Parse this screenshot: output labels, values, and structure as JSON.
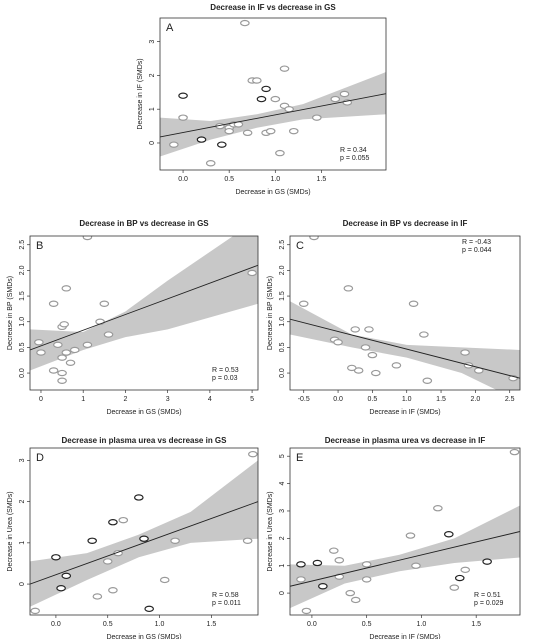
{
  "chart_data": [
    {
      "type": "scatter",
      "title": "Decrease in IF vs decrease in GS",
      "panel": "A",
      "x_label": "Decrease in GS (SMDs)",
      "y_label": "Decrease in IF (SMDs)",
      "xlim": [
        -0.25,
        2.2
      ],
      "ylim": [
        -0.8,
        3.7
      ],
      "xticks": [
        {
          "value": 0,
          "label": "0.0"
        },
        0.5,
        {
          "value": 1,
          "label": "1.0"
        },
        1.5
      ],
      "yticks": [
        0,
        1,
        2,
        3
      ],
      "x": [
        -0.1,
        0.0,
        0.0,
        0.2,
        0.3,
        0.4,
        0.42,
        0.5,
        0.55,
        0.5,
        0.6,
        0.7,
        0.75,
        0.8,
        0.85,
        0.9,
        0.9,
        0.95,
        1.0,
        1.05,
        1.1,
        1.1,
        1.15,
        1.2,
        1.45,
        1.65,
        1.75,
        1.78,
        0.67
      ],
      "y": [
        -0.05,
        1.4,
        0.75,
        0.1,
        -0.6,
        0.5,
        -0.05,
        0.45,
        0.55,
        0.35,
        0.55,
        0.3,
        1.85,
        1.85,
        1.3,
        1.6,
        0.3,
        0.35,
        1.3,
        -0.3,
        2.2,
        1.1,
        1.0,
        0.35,
        0.75,
        1.3,
        1.45,
        1.2,
        3.55
      ],
      "point_colors": [
        "#999",
        "#222",
        "#999",
        "#222",
        "#999",
        "#999",
        "#222",
        "#999",
        "#999",
        "#999",
        "#999",
        "#999",
        "#999",
        "#999",
        "#222",
        "#222",
        "#999",
        "#999",
        "#999",
        "#999",
        "#999",
        "#999",
        "#999",
        "#999",
        "#999",
        "#999",
        "#999",
        "#999",
        "#999"
      ],
      "fit": {
        "x": [
          -0.25,
          2.2
        ],
        "y": [
          0.18,
          1.46
        ]
      },
      "band": {
        "x": [
          -0.25,
          0.3,
          0.8,
          1.3,
          2.2
        ],
        "lower": [
          -0.4,
          0.1,
          0.45,
          0.7,
          0.85
        ],
        "upper": [
          0.75,
          0.65,
          0.85,
          1.15,
          2.1
        ]
      },
      "annotations": [
        "R = 0.34",
        "p =  0.055"
      ]
    },
    {
      "type": "scatter",
      "title": "Decrease in BP vs decrease in GS",
      "panel": "B",
      "x_label": "Decrease in GS (SMDs)",
      "y_label": "Decrease in BP (SMDs)",
      "xlim": [
        -0.26,
        5.14
      ],
      "ylim": [
        -0.33,
        2.67
      ],
      "xticks": [
        0,
        1,
        2,
        3,
        4,
        5
      ],
      "yticks": [
        {
          "value": 0,
          "label": "0.0"
        },
        0.5,
        {
          "value": 1,
          "label": "1.0"
        },
        1.5,
        {
          "value": 2,
          "label": "2.0"
        },
        2.5
      ],
      "x": [
        1.1,
        0.6,
        0.3,
        1.5,
        -0.05,
        0.0,
        0.5,
        0.55,
        0.4,
        0.5,
        0.6,
        0.8,
        0.7,
        0.3,
        0.5,
        0.5,
        1.1,
        1.4,
        1.6,
        5.0
      ],
      "y": [
        2.65,
        1.65,
        1.35,
        1.35,
        0.6,
        0.4,
        0.9,
        0.95,
        0.55,
        0.3,
        0.4,
        0.45,
        0.2,
        0.05,
        0.0,
        -0.15,
        0.55,
        1.0,
        0.75,
        1.95
      ],
      "point_colors": [
        "#999",
        "#999",
        "#999",
        "#999",
        "#999",
        "#999",
        "#999",
        "#999",
        "#999",
        "#999",
        "#999",
        "#999",
        "#999",
        "#999",
        "#999",
        "#999",
        "#999",
        "#999",
        "#999",
        "#999"
      ],
      "fit": {
        "x": [
          -0.26,
          5.14
        ],
        "y": [
          0.45,
          2.1
        ]
      },
      "band": {
        "x": [
          -0.26,
          1,
          2,
          3,
          5.14
        ],
        "lower": [
          0.05,
          0.45,
          0.7,
          0.85,
          1.35
        ],
        "upper": [
          0.85,
          0.8,
          1.2,
          1.8,
          3.0
        ]
      },
      "annotations": [
        "R = 0.53",
        "p = 0.03"
      ]
    },
    {
      "type": "scatter",
      "title": "Decrease in BP vs decrease in IF",
      "panel": "C",
      "x_label": "Decrease in IF (SMDs)",
      "y_label": "Decrease in BP (SMDs)",
      "xlim": [
        -0.7,
        2.65
      ],
      "ylim": [
        -0.33,
        2.67
      ],
      "xticks": [
        -0.5,
        {
          "value": 0,
          "label": "0.0"
        },
        0.5,
        {
          "value": 1,
          "label": "1.0"
        },
        1.5,
        {
          "value": 2,
          "label": "2.0"
        },
        2.5
      ],
      "yticks": [
        {
          "value": 0,
          "label": "0.0"
        },
        0.5,
        {
          "value": 1,
          "label": "1.0"
        },
        1.5,
        {
          "value": 2,
          "label": "2.0"
        },
        2.5
      ],
      "x": [
        -0.35,
        0.15,
        -0.5,
        1.1,
        0.25,
        0.45,
        1.25,
        -0.05,
        0.0,
        0.4,
        0.5,
        0.3,
        0.2,
        0.55,
        0.85,
        1.3,
        1.85,
        1.9,
        2.05,
        2.55
      ],
      "y": [
        2.65,
        1.65,
        1.35,
        1.35,
        0.85,
        0.85,
        0.75,
        0.65,
        0.6,
        0.5,
        0.35,
        0.05,
        0.1,
        0.0,
        0.15,
        -0.15,
        0.4,
        0.15,
        0.05,
        -0.1
      ],
      "point_colors": [
        "#999",
        "#999",
        "#999",
        "#999",
        "#999",
        "#999",
        "#999",
        "#999",
        "#999",
        "#999",
        "#999",
        "#999",
        "#999",
        "#999",
        "#999",
        "#999",
        "#999",
        "#999",
        "#999",
        "#999"
      ],
      "fit": {
        "x": [
          -0.7,
          2.65
        ],
        "y": [
          1.05,
          -0.1
        ]
      },
      "band": {
        "x": [
          -0.7,
          0.2,
          1.0,
          1.8,
          2.65
        ],
        "lower": [
          0.75,
          0.5,
          0.3,
          0.0,
          -0.55
        ],
        "upper": [
          1.4,
          0.75,
          0.55,
          0.5,
          0.45
        ]
      },
      "annotations": [
        "R = -0.43",
        "p = 0.044"
      ]
    },
    {
      "type": "scatter",
      "title": "Decrease in plasma urea vs decrease in GS",
      "panel": "D",
      "x_label": "Decrease in GS (SMDs)",
      "y_label": "Decrease in Urea (SMDs)",
      "xlim": [
        -0.25,
        1.95
      ],
      "ylim": [
        -0.75,
        3.3
      ],
      "xticks": [
        {
          "value": 0,
          "label": "0.0"
        },
        0.5,
        {
          "value": 1,
          "label": "1.0"
        },
        1.5
      ],
      "yticks": [
        0,
        1,
        2,
        3
      ],
      "x": [
        -0.2,
        0.0,
        0.05,
        0.1,
        0.35,
        0.4,
        0.55,
        0.5,
        0.55,
        0.6,
        0.65,
        0.8,
        0.85,
        0.9,
        1.05,
        1.15,
        1.85,
        1.9
      ],
      "y": [
        -0.65,
        0.65,
        -0.1,
        0.2,
        1.05,
        -0.3,
        -0.15,
        0.55,
        1.5,
        0.75,
        1.55,
        2.1,
        1.1,
        -0.6,
        0.1,
        1.05,
        1.05,
        3.15
      ],
      "point_colors": [
        "#999",
        "#222",
        "#222",
        "#222",
        "#222",
        "#999",
        "#999",
        "#999",
        "#222",
        "#999",
        "#999",
        "#222",
        "#222",
        "#222",
        "#999",
        "#999",
        "#999",
        "#999"
      ],
      "fit": {
        "x": [
          -0.25,
          1.95
        ],
        "y": [
          0.0,
          2.0
        ]
      },
      "band": {
        "x": [
          -0.25,
          0.3,
          0.8,
          1.3,
          1.95
        ],
        "lower": [
          -0.55,
          0.1,
          0.65,
          1.0,
          1.1
        ],
        "upper": [
          0.55,
          0.75,
          1.2,
          1.75,
          3.0
        ]
      },
      "annotations": [
        "R = 0.58",
        "p = 0.011"
      ]
    },
    {
      "type": "scatter",
      "title": "Decrease in plasma urea vs decrease in IF",
      "panel": "E",
      "x_label": "Decrease in IF (SMDs)",
      "y_label": "Decrease in Urea (SMDs)",
      "xlim": [
        -0.2,
        1.9
      ],
      "ylim": [
        -0.8,
        5.3
      ],
      "xticks": [
        {
          "value": 0,
          "label": "0.0"
        },
        0.5,
        {
          "value": 1,
          "label": "1.0"
        },
        1.5
      ],
      "yticks": [
        0,
        1,
        2,
        3,
        4,
        5
      ],
      "x": [
        -0.1,
        -0.1,
        -0.05,
        0.05,
        0.1,
        0.2,
        0.25,
        0.25,
        0.35,
        0.4,
        0.5,
        0.5,
        0.9,
        0.95,
        1.15,
        1.25,
        1.3,
        1.35,
        1.4,
        1.6,
        1.85
      ],
      "y": [
        1.05,
        0.5,
        -0.65,
        1.1,
        0.25,
        1.55,
        1.2,
        0.6,
        0.0,
        -0.25,
        1.05,
        0.5,
        2.1,
        1.0,
        3.1,
        2.15,
        0.2,
        0.55,
        0.85,
        1.15,
        5.15
      ],
      "point_colors": [
        "#222",
        "#999",
        "#999",
        "#222",
        "#222",
        "#999",
        "#999",
        "#999",
        "#999",
        "#999",
        "#999",
        "#999",
        "#999",
        "#999",
        "#999",
        "#222",
        "#999",
        "#222",
        "#999",
        "#222",
        "#999"
      ],
      "fit": {
        "x": [
          -0.2,
          1.9
        ],
        "y": [
          0.25,
          2.25
        ]
      },
      "band": {
        "x": [
          -0.2,
          0.3,
          0.8,
          1.3,
          1.9
        ],
        "lower": [
          -0.55,
          0.35,
          0.8,
          1.1,
          1.3
        ],
        "upper": [
          1.05,
          1.0,
          1.4,
          2.0,
          3.2
        ]
      },
      "annotations": [
        "R = 0.51",
        "p = 0.029"
      ]
    }
  ]
}
